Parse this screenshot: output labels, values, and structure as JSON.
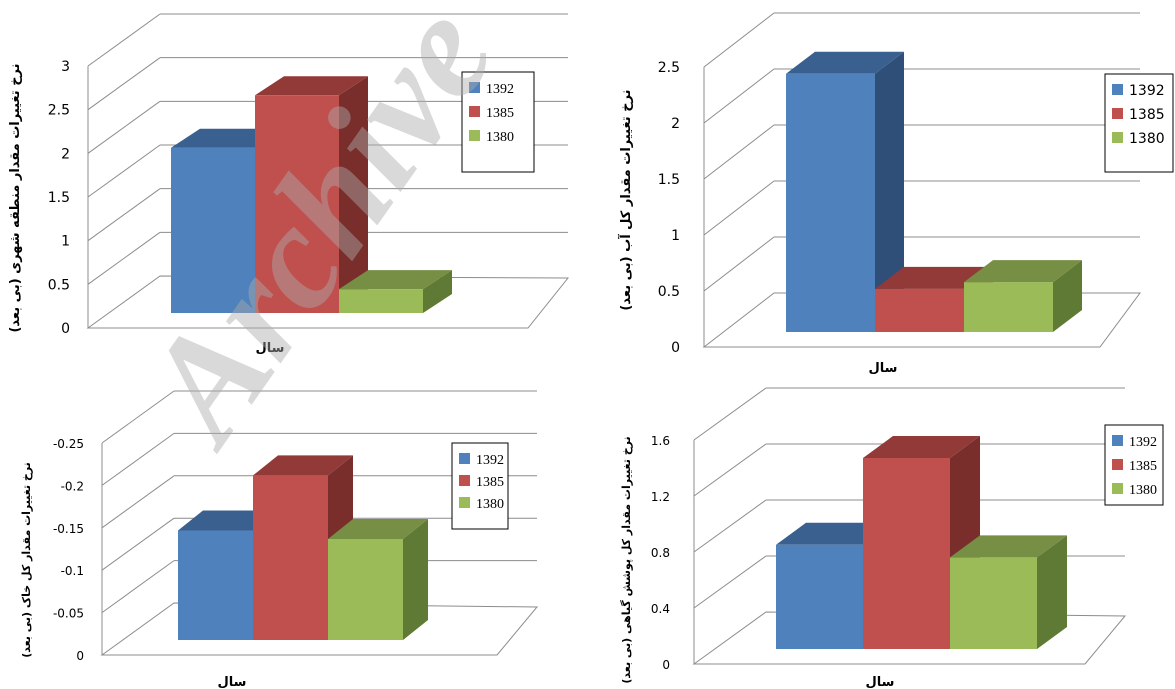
{
  "colors": {
    "1392": {
      "front": "#4f81bd",
      "side": "#2f4f78",
      "top": "#3a6090"
    },
    "1385": {
      "front": "#c0504d",
      "side": "#7a2e2c",
      "top": "#923a38"
    },
    "1380": {
      "front": "#9bbb59",
      "side": "#5f7a34",
      "top": "#768f45"
    }
  },
  "watermark": "Archive",
  "chart_data": [
    {
      "type": "bar",
      "title": "",
      "xlabel": "سال",
      "ylabel": "نرخ تغییرات مقدار منطقه شهری (بی بعد)",
      "ylim": [
        0,
        3
      ],
      "yticks": [
        "0",
        "0.5",
        "1",
        "1.5",
        "2",
        "2.5",
        "3"
      ],
      "series": [
        {
          "name": "1392",
          "values": [
            1.95
          ]
        },
        {
          "name": "1385",
          "values": [
            2.55
          ]
        },
        {
          "name": "1380",
          "values": [
            0.33
          ]
        }
      ],
      "legend": "top-right"
    },
    {
      "type": "bar",
      "title": "",
      "xlabel": "سال",
      "ylabel": "نرخ تغییرات مقدار کل آب (بی بعد)",
      "ylim": [
        0,
        2.5
      ],
      "yticks": [
        "0",
        "0.5",
        "1",
        "1.5",
        "2",
        "2.5"
      ],
      "series": [
        {
          "name": "1392",
          "values": [
            2.35
          ]
        },
        {
          "name": "1385",
          "values": [
            0.43
          ]
        },
        {
          "name": "1380",
          "values": [
            0.49
          ]
        }
      ],
      "legend": "top-right"
    },
    {
      "type": "bar",
      "title": "",
      "xlabel": "سال",
      "ylabel": "نرخ تغییرات مقدار کل خاک (بی بعد)",
      "ylim": [
        0,
        -0.25
      ],
      "yticks": [
        "0",
        "-0.05",
        "-0.1",
        "-0.15",
        "-0.2",
        "-0.25"
      ],
      "series": [
        {
          "name": "1392",
          "values": [
            -0.135
          ]
        },
        {
          "name": "1385",
          "values": [
            -0.2
          ]
        },
        {
          "name": "1380",
          "values": [
            -0.125
          ]
        }
      ],
      "legend": "top-right"
    },
    {
      "type": "bar",
      "title": "",
      "xlabel": "سال",
      "ylabel": "نرخ تغییرات مقدار کل پوشش گیاهی (بی بعد)",
      "ylim": [
        0,
        1.6
      ],
      "yticks": [
        "0",
        "0.4",
        "0.8",
        "1.2",
        "1.6"
      ],
      "series": [
        {
          "name": "1392",
          "values": [
            0.78
          ]
        },
        {
          "name": "1385",
          "values": [
            1.4
          ]
        },
        {
          "name": "1380",
          "values": [
            0.69
          ]
        }
      ],
      "legend": "top-right"
    }
  ]
}
